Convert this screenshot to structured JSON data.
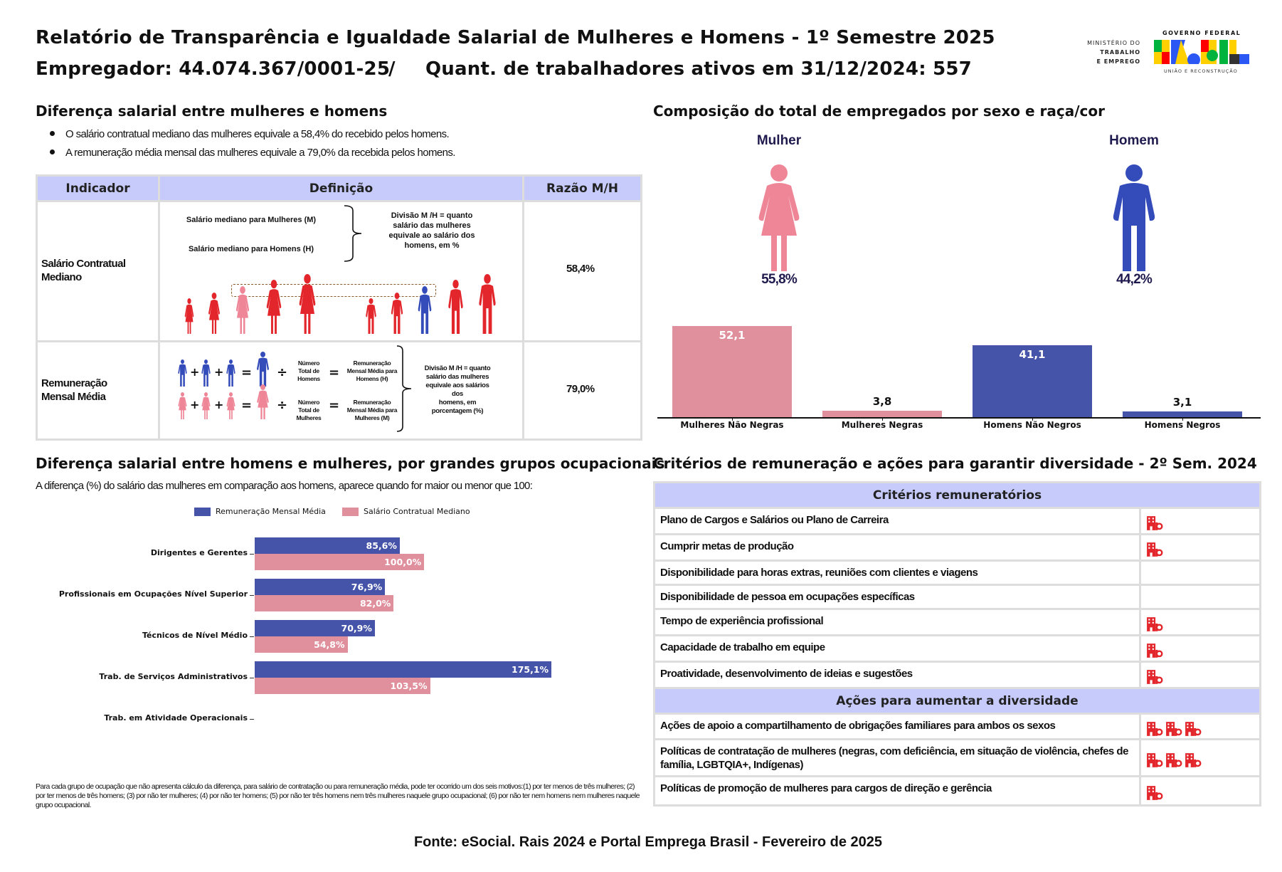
{
  "header": {
    "title": "Relatório de Transparência e Igualdade Salarial de Mulheres e Homens - 1º Semestre 2025",
    "employer": "Empregador: 44.074.367/0001-25",
    "separator": "/",
    "workers": "Quant. de trabalhadores ativos em 31/12/2024: 557",
    "logo": {
      "ministry": [
        "MINISTÉRIO DO",
        "TRABALHO",
        "E EMPREGO"
      ],
      "gov": "GOVERNO FEDERAL",
      "brand": "BRASIL",
      "tagline": "UNIÃO E RECONSTRUÇÃO"
    }
  },
  "gap_section": {
    "title": "Diferença salarial entre mulheres e homens",
    "bullets": [
      "O salário contratual mediano das mulheres equivale a 58,4% do recebido pelos homens.",
      "A remuneração média mensal das mulheres equivale a 79,0% da recebida pelos homens."
    ],
    "table": {
      "headers": [
        "Indicador",
        "Definição",
        "Razão M/H"
      ],
      "row1": {
        "label": [
          "Salário Contratual",
          "Mediano"
        ],
        "def_m": "Salário mediano para Mulheres (M)",
        "def_h": "Salário mediano para Homens (H)",
        "def_note": [
          "Divisão M /H = quanto",
          "salário das mulheres",
          "equivale ao salário dos",
          "homens, em %"
        ],
        "ratio": "58,4%"
      },
      "row2": {
        "label": [
          "Remuneração",
          "Mensal Média"
        ],
        "count_h": [
          "Número",
          "Total de",
          "Homens"
        ],
        "avg_h": [
          "Remuneração",
          "Mensal Média para",
          "Homens (H)"
        ],
        "count_m": [
          "Número",
          "Total de",
          "Mulheres"
        ],
        "avg_m": [
          "Remuneração",
          "Mensal Média para",
          "Mulheres (M)"
        ],
        "def_note": [
          "Divisão M /H = quanto",
          "salário das mulheres",
          "equivale aos salários",
          "dos",
          "homens, em",
          "porcentagem (%)"
        ],
        "ratio": "79,0%",
        "plus": "+",
        "equals": "=",
        "divide": "÷"
      }
    }
  },
  "composition": {
    "title": "Composição do total de empregados por sexo e raça/cor",
    "woman_label": "Mulher",
    "man_label": "Homem",
    "woman_pct": "55,8%",
    "man_pct": "44,2%"
  },
  "occupation_section": {
    "title": "Diferença salarial entre homens e mulheres, por grandes grupos ocupacionais",
    "subtitle": "A diferença (%) do salário das mulheres em comparação aos homens, aparece quando for maior ou menor que 100:",
    "footnote": "Para cada grupo de ocupação que não apresenta cálculo da diferença, para salário de contratação ou para remuneração média, pode ter ocorrido um dos seis motivos:(1) por ter menos de três mulheres; (2) por ter menos de três homens; (3) por não ter mulheres; (4) por não ter homens; (5) por não ter três homens nem três mulheres naquele grupo ocupacional; (6) por não ter nem homens nem mulheres naquele grupo ocupacional."
  },
  "chart_data": [
    {
      "type": "bar",
      "orientation": "vertical",
      "title": "",
      "categories": [
        "Mulheres Não Negras",
        "Mulheres Negras",
        "Homens Não Negros",
        "Homens Negros"
      ],
      "values": [
        52.1,
        3.8,
        41.1,
        3.1
      ],
      "labels": [
        "52,1",
        "3,8",
        "41,1",
        "3,1"
      ],
      "colors": [
        "#e08f9d",
        "#e08f9d",
        "#4554a8",
        "#4554a8"
      ],
      "ylim": [
        0,
        55
      ],
      "grid": false
    },
    {
      "type": "bar",
      "orientation": "horizontal",
      "categories": [
        "Dirigentes e Gerentes",
        "Profissionais em Ocupações Nível Superior",
        "Técnicos de Nível Médio",
        "Trab. de Serviços Administrativos",
        "Trab. em Atividade Operacionais"
      ],
      "series": [
        {
          "name": "Remuneração Mensal Média",
          "color": "#4554a8",
          "values": [
            85.6,
            76.9,
            70.9,
            175.1,
            null
          ],
          "labels": [
            "85,6%",
            "76,9%",
            "70,9%",
            "175,1%",
            ""
          ]
        },
        {
          "name": "Salário Contratual Mediano",
          "color": "#e08f9d",
          "values": [
            100.0,
            82.0,
            54.8,
            103.5,
            null
          ],
          "labels": [
            "100,0%",
            "82,0%",
            "54,8%",
            "103,5%",
            ""
          ]
        }
      ],
      "xlim": [
        0,
        180
      ],
      "legend": "top",
      "grid": false
    }
  ],
  "criteria": {
    "title": "Critérios de remuneração e ações para garantir diversidade - 2º Sem. 2024",
    "criteria_header": "Critérios remuneratórios",
    "criteria": [
      {
        "label": "Plano de Cargos e Salários ou Plano de Carreira",
        "icons": 1
      },
      {
        "label": "Cumprir metas de produção",
        "icons": 1
      },
      {
        "label": "Disponibilidade para horas extras, reuniões com clientes e viagens",
        "icons": 0
      },
      {
        "label": "Disponibilidade de pessoa em ocupações específicas",
        "icons": 0
      },
      {
        "label": "Tempo de experiência profissional",
        "icons": 1
      },
      {
        "label": "Capacidade de trabalho em equipe",
        "icons": 1
      },
      {
        "label": "Proatividade, desenvolvimento de ideias e sugestões",
        "icons": 1
      }
    ],
    "actions_header": "Ações para aumentar a diversidade",
    "actions": [
      {
        "label": "Ações de apoio a compartilhamento de obrigações familiares para ambos os sexos",
        "icons": 3
      },
      {
        "label": "Políticas de contratação de mulheres (negras, com deficiência, em situação de violência, chefes de família, LGBTQIA+, Indígenas)",
        "icons": 3
      },
      {
        "label": "Políticas de promoção de mulheres para cargos de direção e gerência",
        "icons": 1
      }
    ],
    "icon": "company-building-icon",
    "icon_color": "#e3262b"
  },
  "footer": "Fonte: eSocial. Rais 2024 e Portal Emprega Brasil - Fevereiro de 2025",
  "colors": {
    "pink": "#ef8697",
    "blue": "#344bba",
    "red": "#e3262b",
    "header_bg": "#c6cbfb"
  }
}
